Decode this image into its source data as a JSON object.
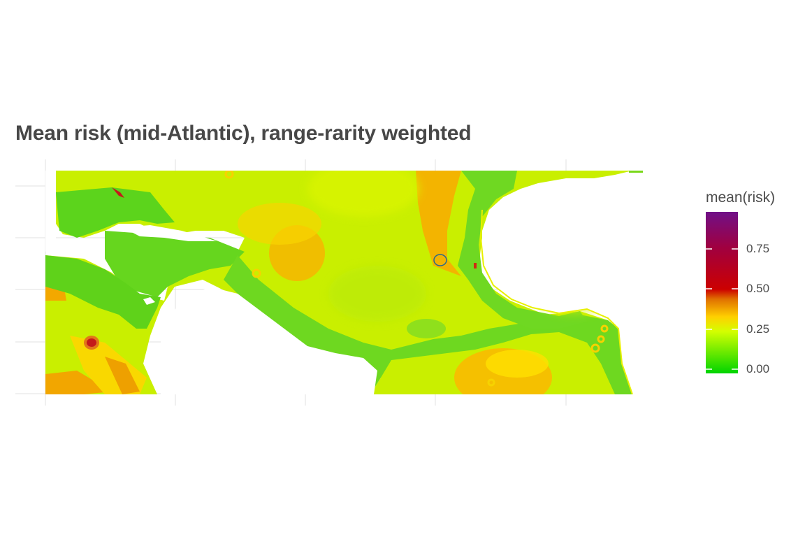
{
  "title": "Mean risk (mid-Atlantic), range-rarity weighted",
  "legend": {
    "title": "mean(risk)",
    "ticks": [
      {
        "label": "0.75",
        "value": 0.75
      },
      {
        "label": "0.50",
        "value": 0.5
      },
      {
        "label": "0.25",
        "value": 0.25
      },
      {
        "label": "0.00",
        "value": 0.0
      }
    ],
    "range": [
      0,
      0.97
    ],
    "colors": [
      "#00d400",
      "#d4ff00",
      "#ffd000",
      "#e07000",
      "#cc0000",
      "#7a1080"
    ]
  },
  "map": {
    "land_color": "#ffffff",
    "grid_color": "#e6e6e6",
    "low_color": "#5fd41e",
    "mid_color": "#d2f000",
    "high_color": "#f2a600",
    "hotspot_color": "#c41a1a"
  }
}
